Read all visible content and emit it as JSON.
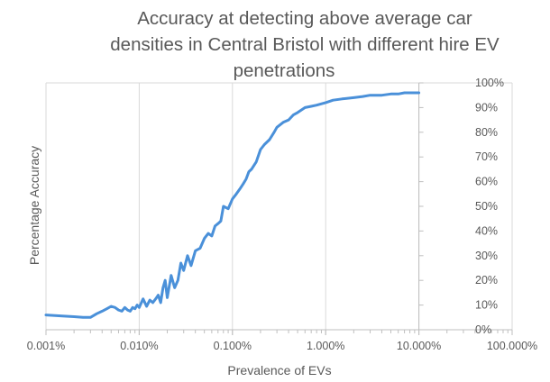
{
  "chart_data": {
    "type": "line",
    "title": "Accuracy at detecting above average car densities in Central Bristol with different hire EV penetrations",
    "title_lines": [
      "Accuracy at detecting above average car",
      "densities in Central Bristol with different hire EV",
      "penetrations"
    ],
    "xlabel": "Prevalence of EVs",
    "ylabel": "Percentage Accuracy",
    "x_scale": "log",
    "xlim": [
      0.001,
      100
    ],
    "ylim": [
      0,
      100
    ],
    "x_tick_labels": [
      "0.001%",
      "0.010%",
      "0.100%",
      "1.000%",
      "10.000%",
      "100.000%"
    ],
    "y_tick_labels": [
      "0%",
      "10%",
      "20%",
      "30%",
      "40%",
      "50%",
      "60%",
      "70%",
      "80%",
      "90%",
      "100%"
    ],
    "grid": true,
    "legend": "none",
    "series": [
      {
        "color": "#4a90d9",
        "x": [
          0.001,
          0.0015,
          0.002,
          0.0025,
          0.003,
          0.0035,
          0.004,
          0.0045,
          0.005,
          0.0055,
          0.006,
          0.0065,
          0.007,
          0.0075,
          0.008,
          0.0085,
          0.009,
          0.0095,
          0.01,
          0.011,
          0.012,
          0.013,
          0.014,
          0.015,
          0.016,
          0.017,
          0.018,
          0.019,
          0.02,
          0.022,
          0.024,
          0.026,
          0.028,
          0.03,
          0.033,
          0.036,
          0.04,
          0.045,
          0.05,
          0.055,
          0.06,
          0.065,
          0.07,
          0.075,
          0.08,
          0.09,
          0.1,
          0.11,
          0.12,
          0.13,
          0.14,
          0.15,
          0.16,
          0.18,
          0.2,
          0.22,
          0.25,
          0.28,
          0.3,
          0.35,
          0.4,
          0.45,
          0.5,
          0.6,
          0.7,
          0.8,
          1,
          1.2,
          1.5,
          2,
          2.5,
          3,
          4,
          5,
          6,
          7,
          8,
          9,
          10
        ],
        "y": [
          6,
          5.6,
          5.3,
          5,
          5,
          6.5,
          7.5,
          8.5,
          9.5,
          9,
          8,
          7.5,
          9,
          8,
          7.5,
          9,
          8.5,
          10,
          9,
          12.5,
          9.5,
          12,
          11,
          12.5,
          14,
          11,
          17,
          20,
          13,
          22,
          17,
          20,
          27,
          24,
          30,
          26,
          32,
          33,
          37,
          39,
          38,
          42,
          43,
          44,
          50,
          49,
          53,
          55,
          57,
          59,
          61,
          64,
          65,
          68,
          73,
          75,
          77,
          80,
          82,
          84,
          85,
          87,
          88,
          90,
          90.5,
          91,
          92,
          93,
          93.5,
          94,
          94.5,
          95,
          95,
          95.5,
          95.5,
          96,
          96,
          96,
          96
        ]
      }
    ]
  }
}
